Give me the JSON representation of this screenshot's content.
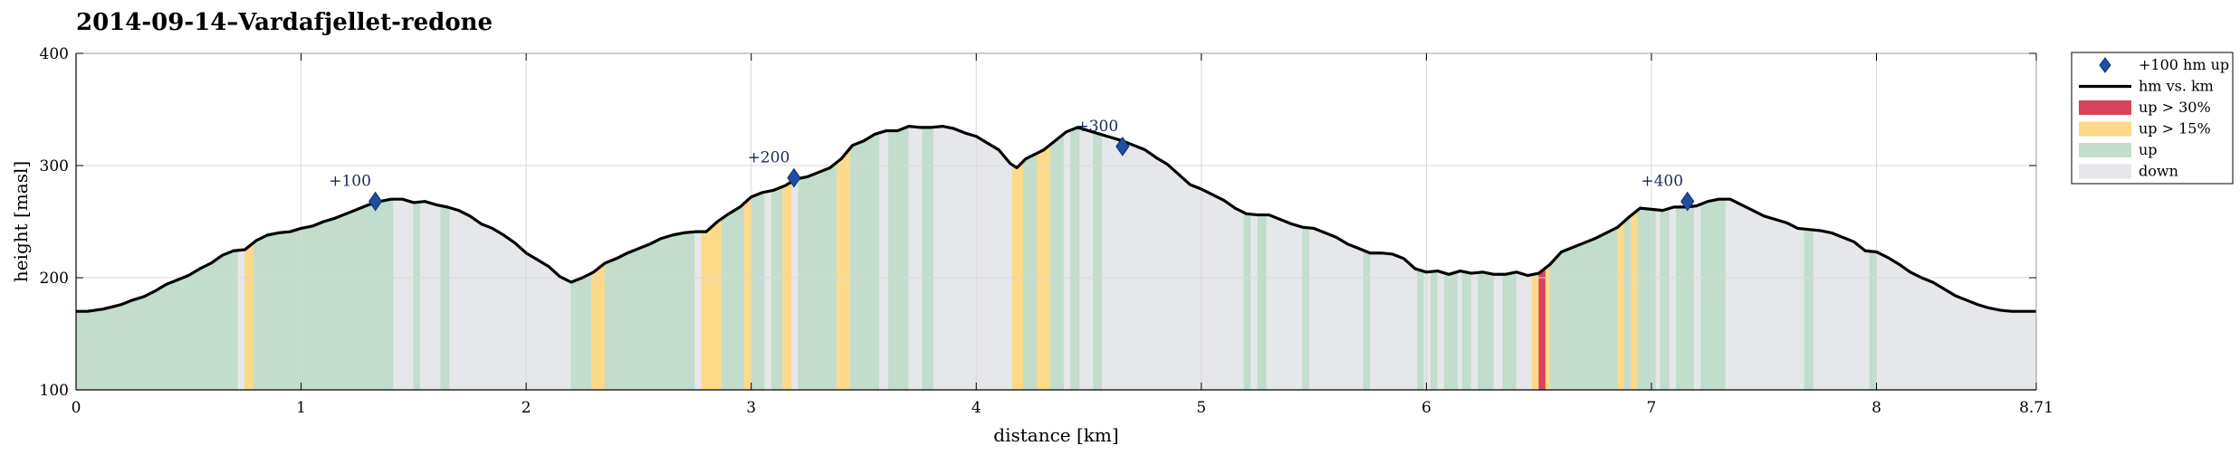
{
  "chart_data": {
    "type": "area",
    "title": "2014-09-14–Vardafjellet-redone",
    "xlabel": "distance [km]",
    "ylabel": "height [masl]",
    "xlim": [
      0,
      8.71
    ],
    "ylim": [
      100,
      400
    ],
    "x_ticks": [
      0,
      1,
      2,
      3,
      4,
      5,
      6,
      7,
      8,
      8.71
    ],
    "x_tick_labels": [
      "0",
      "1",
      "2",
      "3",
      "4",
      "5",
      "6",
      "7",
      "8",
      "8.71"
    ],
    "y_ticks": [
      100,
      200,
      300,
      400
    ],
    "grid": true,
    "legend": {
      "placement": "outside-top-right",
      "entries": [
        {
          "key": "marker",
          "label": "+100 hm up"
        },
        {
          "key": "line",
          "label": "hm vs. km"
        },
        {
          "key": "up30",
          "label": "up > 30%"
        },
        {
          "key": "up15",
          "label": "up > 15%"
        },
        {
          "key": "up",
          "label": "up"
        },
        {
          "key": "down",
          "label": "down"
        }
      ]
    },
    "colors": {
      "line": "#000000",
      "marker": "#1f4ea3",
      "up30": "#d9435a",
      "up15": "#fdd98a",
      "up": "#c2ddcb",
      "down": "#e6e7ea",
      "grid": "#d8d8d8"
    },
    "profile": [
      [
        0.0,
        170
      ],
      [
        0.05,
        170
      ],
      [
        0.12,
        172
      ],
      [
        0.2,
        176
      ],
      [
        0.25,
        180
      ],
      [
        0.3,
        183
      ],
      [
        0.35,
        188
      ],
      [
        0.4,
        194
      ],
      [
        0.45,
        198
      ],
      [
        0.5,
        202
      ],
      [
        0.55,
        208
      ],
      [
        0.6,
        213
      ],
      [
        0.65,
        220
      ],
      [
        0.7,
        224
      ],
      [
        0.75,
        225
      ],
      [
        0.8,
        233
      ],
      [
        0.85,
        238
      ],
      [
        0.9,
        240
      ],
      [
        0.95,
        241
      ],
      [
        1.0,
        244
      ],
      [
        1.05,
        246
      ],
      [
        1.1,
        250
      ],
      [
        1.15,
        253
      ],
      [
        1.2,
        257
      ],
      [
        1.25,
        261
      ],
      [
        1.3,
        265
      ],
      [
        1.35,
        268
      ],
      [
        1.4,
        270
      ],
      [
        1.45,
        270
      ],
      [
        1.5,
        267
      ],
      [
        1.55,
        268
      ],
      [
        1.6,
        265
      ],
      [
        1.65,
        263
      ],
      [
        1.7,
        260
      ],
      [
        1.75,
        255
      ],
      [
        1.8,
        248
      ],
      [
        1.85,
        244
      ],
      [
        1.9,
        238
      ],
      [
        1.95,
        231
      ],
      [
        2.0,
        222
      ],
      [
        2.05,
        216
      ],
      [
        2.1,
        210
      ],
      [
        2.15,
        201
      ],
      [
        2.2,
        196
      ],
      [
        2.25,
        200
      ],
      [
        2.3,
        205
      ],
      [
        2.35,
        213
      ],
      [
        2.4,
        217
      ],
      [
        2.45,
        222
      ],
      [
        2.5,
        226
      ],
      [
        2.55,
        230
      ],
      [
        2.6,
        235
      ],
      [
        2.65,
        238
      ],
      [
        2.7,
        240
      ],
      [
        2.75,
        241
      ],
      [
        2.8,
        241
      ],
      [
        2.85,
        250
      ],
      [
        2.9,
        257
      ],
      [
        2.95,
        263
      ],
      [
        3.0,
        272
      ],
      [
        3.05,
        276
      ],
      [
        3.1,
        278
      ],
      [
        3.15,
        282
      ],
      [
        3.2,
        288
      ],
      [
        3.25,
        290
      ],
      [
        3.3,
        294
      ],
      [
        3.35,
        298
      ],
      [
        3.4,
        306
      ],
      [
        3.45,
        318
      ],
      [
        3.5,
        322
      ],
      [
        3.55,
        328
      ],
      [
        3.6,
        331
      ],
      [
        3.65,
        331
      ],
      [
        3.7,
        335
      ],
      [
        3.75,
        334
      ],
      [
        3.8,
        334
      ],
      [
        3.85,
        335
      ],
      [
        3.9,
        333
      ],
      [
        3.95,
        329
      ],
      [
        4.0,
        326
      ],
      [
        4.05,
        320
      ],
      [
        4.1,
        314
      ],
      [
        4.15,
        302
      ],
      [
        4.18,
        298
      ],
      [
        4.22,
        306
      ],
      [
        4.3,
        314
      ],
      [
        4.35,
        322
      ],
      [
        4.4,
        330
      ],
      [
        4.45,
        334
      ],
      [
        4.5,
        331
      ],
      [
        4.55,
        328
      ],
      [
        4.6,
        325
      ],
      [
        4.65,
        322
      ],
      [
        4.7,
        318
      ],
      [
        4.75,
        314
      ],
      [
        4.8,
        307
      ],
      [
        4.85,
        301
      ],
      [
        4.9,
        292
      ],
      [
        4.95,
        283
      ],
      [
        5.0,
        279
      ],
      [
        5.05,
        274
      ],
      [
        5.1,
        269
      ],
      [
        5.15,
        262
      ],
      [
        5.2,
        257
      ],
      [
        5.25,
        256
      ],
      [
        5.3,
        256
      ],
      [
        5.35,
        252
      ],
      [
        5.4,
        248
      ],
      [
        5.45,
        245
      ],
      [
        5.5,
        244
      ],
      [
        5.55,
        240
      ],
      [
        5.6,
        236
      ],
      [
        5.65,
        230
      ],
      [
        5.7,
        226
      ],
      [
        5.75,
        222
      ],
      [
        5.8,
        222
      ],
      [
        5.85,
        221
      ],
      [
        5.9,
        217
      ],
      [
        5.95,
        208
      ],
      [
        6.0,
        205
      ],
      [
        6.05,
        206
      ],
      [
        6.1,
        203
      ],
      [
        6.15,
        206
      ],
      [
        6.2,
        204
      ],
      [
        6.25,
        205
      ],
      [
        6.3,
        203
      ],
      [
        6.35,
        203
      ],
      [
        6.4,
        205
      ],
      [
        6.45,
        202
      ],
      [
        6.5,
        204
      ],
      [
        6.55,
        212
      ],
      [
        6.6,
        223
      ],
      [
        6.65,
        227
      ],
      [
        6.7,
        231
      ],
      [
        6.75,
        235
      ],
      [
        6.8,
        240
      ],
      [
        6.85,
        245
      ],
      [
        6.9,
        254
      ],
      [
        6.95,
        262
      ],
      [
        7.0,
        261
      ],
      [
        7.05,
        260
      ],
      [
        7.1,
        263
      ],
      [
        7.15,
        263
      ],
      [
        7.2,
        264
      ],
      [
        7.25,
        268
      ],
      [
        7.3,
        270
      ],
      [
        7.35,
        270
      ],
      [
        7.4,
        265
      ],
      [
        7.45,
        260
      ],
      [
        7.5,
        255
      ],
      [
        7.55,
        252
      ],
      [
        7.6,
        249
      ],
      [
        7.65,
        244
      ],
      [
        7.7,
        243
      ],
      [
        7.75,
        242
      ],
      [
        7.8,
        240
      ],
      [
        7.85,
        236
      ],
      [
        7.9,
        232
      ],
      [
        7.95,
        224
      ],
      [
        8.0,
        223
      ],
      [
        8.05,
        218
      ],
      [
        8.1,
        212
      ],
      [
        8.15,
        205
      ],
      [
        8.2,
        200
      ],
      [
        8.25,
        196
      ],
      [
        8.3,
        190
      ],
      [
        8.35,
        184
      ],
      [
        8.4,
        180
      ],
      [
        8.45,
        176
      ],
      [
        8.5,
        173
      ],
      [
        8.55,
        171
      ],
      [
        8.6,
        170
      ],
      [
        8.71,
        170
      ]
    ],
    "segments": [
      {
        "x0": 0.0,
        "x1": 0.72,
        "kind": "up"
      },
      {
        "x0": 0.72,
        "x1": 0.75,
        "kind": "down"
      },
      {
        "x0": 0.75,
        "x1": 0.79,
        "kind": "up15"
      },
      {
        "x0": 0.79,
        "x1": 1.41,
        "kind": "up"
      },
      {
        "x0": 1.41,
        "x1": 1.5,
        "kind": "down"
      },
      {
        "x0": 1.5,
        "x1": 1.53,
        "kind": "up"
      },
      {
        "x0": 1.53,
        "x1": 1.62,
        "kind": "down"
      },
      {
        "x0": 1.62,
        "x1": 1.66,
        "kind": "up"
      },
      {
        "x0": 1.66,
        "x1": 2.2,
        "kind": "down"
      },
      {
        "x0": 2.2,
        "x1": 2.29,
        "kind": "up"
      },
      {
        "x0": 2.29,
        "x1": 2.35,
        "kind": "up15"
      },
      {
        "x0": 2.35,
        "x1": 2.75,
        "kind": "up"
      },
      {
        "x0": 2.75,
        "x1": 2.78,
        "kind": "down"
      },
      {
        "x0": 2.78,
        "x1": 2.87,
        "kind": "up15"
      },
      {
        "x0": 2.87,
        "x1": 2.97,
        "kind": "up"
      },
      {
        "x0": 2.97,
        "x1": 3.0,
        "kind": "up15"
      },
      {
        "x0": 3.0,
        "x1": 3.06,
        "kind": "up"
      },
      {
        "x0": 3.06,
        "x1": 3.09,
        "kind": "down"
      },
      {
        "x0": 3.09,
        "x1": 3.14,
        "kind": "up"
      },
      {
        "x0": 3.14,
        "x1": 3.18,
        "kind": "up15"
      },
      {
        "x0": 3.18,
        "x1": 3.21,
        "kind": "down"
      },
      {
        "x0": 3.21,
        "x1": 3.38,
        "kind": "up"
      },
      {
        "x0": 3.38,
        "x1": 3.44,
        "kind": "up15"
      },
      {
        "x0": 3.44,
        "x1": 3.57,
        "kind": "up"
      },
      {
        "x0": 3.57,
        "x1": 3.61,
        "kind": "down"
      },
      {
        "x0": 3.61,
        "x1": 3.7,
        "kind": "up"
      },
      {
        "x0": 3.7,
        "x1": 3.76,
        "kind": "down"
      },
      {
        "x0": 3.76,
        "x1": 3.81,
        "kind": "up"
      },
      {
        "x0": 3.81,
        "x1": 4.16,
        "kind": "down"
      },
      {
        "x0": 4.16,
        "x1": 4.21,
        "kind": "up15"
      },
      {
        "x0": 4.21,
        "x1": 4.27,
        "kind": "up"
      },
      {
        "x0": 4.27,
        "x1": 4.33,
        "kind": "up15"
      },
      {
        "x0": 4.33,
        "x1": 4.39,
        "kind": "up"
      },
      {
        "x0": 4.39,
        "x1": 4.42,
        "kind": "down"
      },
      {
        "x0": 4.42,
        "x1": 4.46,
        "kind": "up"
      },
      {
        "x0": 4.46,
        "x1": 4.52,
        "kind": "down"
      },
      {
        "x0": 4.52,
        "x1": 4.56,
        "kind": "up"
      },
      {
        "x0": 4.56,
        "x1": 5.19,
        "kind": "down"
      },
      {
        "x0": 5.19,
        "x1": 5.22,
        "kind": "up"
      },
      {
        "x0": 5.22,
        "x1": 5.25,
        "kind": "down"
      },
      {
        "x0": 5.25,
        "x1": 5.29,
        "kind": "up"
      },
      {
        "x0": 5.29,
        "x1": 5.45,
        "kind": "down"
      },
      {
        "x0": 5.45,
        "x1": 5.48,
        "kind": "up"
      },
      {
        "x0": 5.48,
        "x1": 5.72,
        "kind": "down"
      },
      {
        "x0": 5.72,
        "x1": 5.75,
        "kind": "up"
      },
      {
        "x0": 5.75,
        "x1": 5.96,
        "kind": "down"
      },
      {
        "x0": 5.96,
        "x1": 5.99,
        "kind": "up"
      },
      {
        "x0": 5.99,
        "x1": 6.02,
        "kind": "down"
      },
      {
        "x0": 6.02,
        "x1": 6.05,
        "kind": "up"
      },
      {
        "x0": 6.05,
        "x1": 6.08,
        "kind": "down"
      },
      {
        "x0": 6.08,
        "x1": 6.14,
        "kind": "up"
      },
      {
        "x0": 6.14,
        "x1": 6.16,
        "kind": "down"
      },
      {
        "x0": 6.16,
        "x1": 6.2,
        "kind": "up"
      },
      {
        "x0": 6.2,
        "x1": 6.23,
        "kind": "down"
      },
      {
        "x0": 6.23,
        "x1": 6.3,
        "kind": "up"
      },
      {
        "x0": 6.3,
        "x1": 6.34,
        "kind": "down"
      },
      {
        "x0": 6.34,
        "x1": 6.4,
        "kind": "up"
      },
      {
        "x0": 6.4,
        "x1": 6.47,
        "kind": "down"
      },
      {
        "x0": 6.47,
        "x1": 6.5,
        "kind": "up15"
      },
      {
        "x0": 6.5,
        "x1": 6.53,
        "kind": "up30"
      },
      {
        "x0": 6.53,
        "x1": 6.55,
        "kind": "up15"
      },
      {
        "x0": 6.55,
        "x1": 6.85,
        "kind": "up"
      },
      {
        "x0": 6.85,
        "x1": 6.88,
        "kind": "up15"
      },
      {
        "x0": 6.88,
        "x1": 6.91,
        "kind": "up"
      },
      {
        "x0": 6.91,
        "x1": 6.94,
        "kind": "up15"
      },
      {
        "x0": 6.94,
        "x1": 7.02,
        "kind": "up"
      },
      {
        "x0": 7.02,
        "x1": 7.04,
        "kind": "down"
      },
      {
        "x0": 7.04,
        "x1": 7.08,
        "kind": "up"
      },
      {
        "x0": 7.08,
        "x1": 7.11,
        "kind": "down"
      },
      {
        "x0": 7.11,
        "x1": 7.19,
        "kind": "up"
      },
      {
        "x0": 7.19,
        "x1": 7.22,
        "kind": "down"
      },
      {
        "x0": 7.22,
        "x1": 7.33,
        "kind": "up"
      },
      {
        "x0": 7.33,
        "x1": 7.68,
        "kind": "down"
      },
      {
        "x0": 7.68,
        "x1": 7.72,
        "kind": "up"
      },
      {
        "x0": 7.72,
        "x1": 7.97,
        "kind": "down"
      },
      {
        "x0": 7.97,
        "x1": 8.0,
        "kind": "up"
      },
      {
        "x0": 8.0,
        "x1": 8.71,
        "kind": "down"
      }
    ],
    "markers": [
      {
        "x": 1.33,
        "y": 268,
        "label": "+100"
      },
      {
        "x": 3.19,
        "y": 289,
        "label": "+200"
      },
      {
        "x": 4.65,
        "y": 317,
        "label": "+300"
      },
      {
        "x": 7.16,
        "y": 268,
        "label": "+400"
      }
    ]
  }
}
